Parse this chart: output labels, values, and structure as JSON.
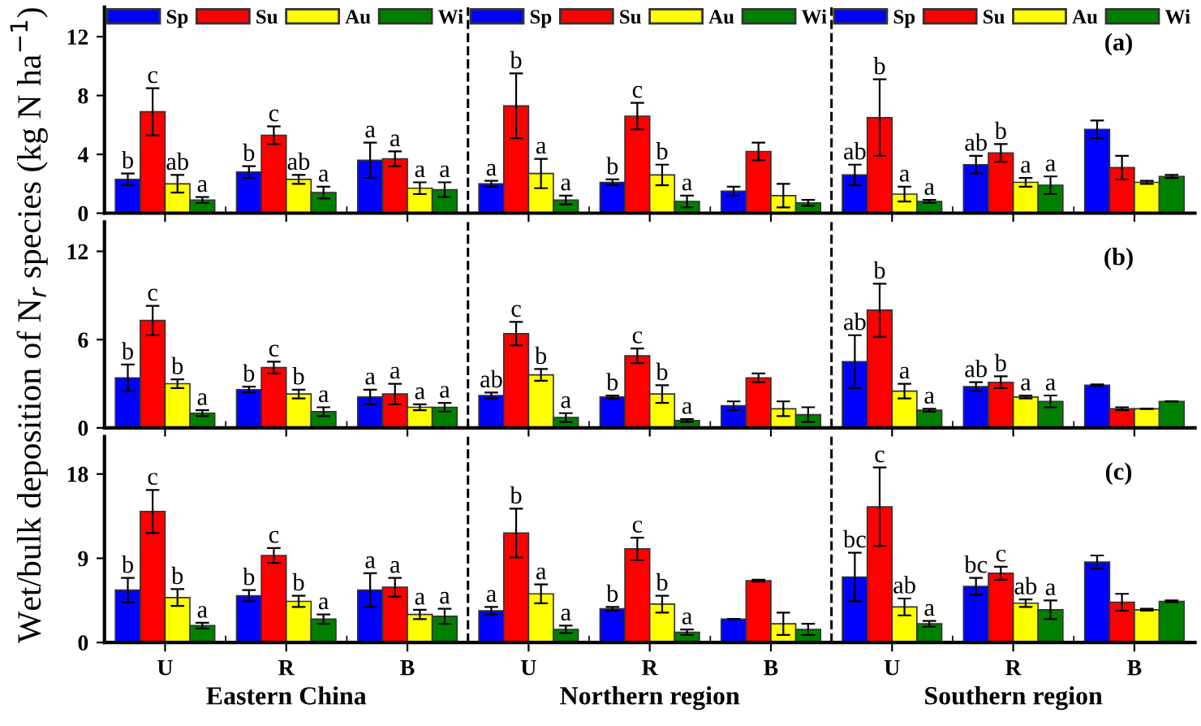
{
  "chart_data": [
    {
      "type": "bar",
      "categories": [
        null,
        null,
        null,
        null,
        null,
        null,
        null,
        null,
        null
      ],
      "ylim": [
        0,
        14
      ],
      "yticks": [
        0,
        4,
        8,
        12
      ],
      "tick_labels": "y",
      "legend": "top",
      "grid": false,
      "annotations": [
        "(a)"
      ],
      "series": [
        {
          "name": "Sp",
          "color": "#0000ff",
          "values": [
            2.3,
            2.8,
            3.6,
            2.0,
            2.1,
            1.5,
            2.6,
            3.3,
            5.7
          ],
          "errors": [
            0.4,
            0.4,
            1.2,
            0.2,
            0.2,
            0.3,
            0.7,
            0.6,
            0.6
          ],
          "value_labels": [
            "b",
            "b",
            "a",
            "a",
            "b",
            null,
            "ab",
            "ab",
            null
          ]
        },
        {
          "name": "Su",
          "color": "#ff0000",
          "values": [
            6.9,
            5.3,
            3.7,
            7.3,
            6.6,
            4.2,
            6.5,
            4.1,
            3.1
          ],
          "errors": [
            1.6,
            0.6,
            0.5,
            2.2,
            0.9,
            0.6,
            2.6,
            0.6,
            0.8
          ],
          "value_labels": [
            "c",
            "c",
            "a",
            "b",
            "c",
            null,
            "b",
            "b",
            null
          ]
        },
        {
          "name": "Au",
          "color": "#ffff00",
          "values": [
            2.0,
            2.3,
            1.7,
            2.7,
            2.6,
            1.2,
            1.3,
            2.1,
            2.1
          ],
          "errors": [
            0.6,
            0.3,
            0.4,
            1.0,
            0.7,
            0.8,
            0.5,
            0.3,
            0.1
          ],
          "value_labels": [
            "ab",
            "ab",
            "a",
            "a",
            "b",
            null,
            "a",
            "a",
            null
          ]
        },
        {
          "name": "Wi",
          "color": "#008000",
          "values": [
            0.9,
            1.4,
            1.6,
            0.9,
            0.8,
            0.7,
            0.8,
            1.9,
            2.5
          ],
          "errors": [
            0.2,
            0.4,
            0.5,
            0.3,
            0.4,
            0.2,
            0.1,
            0.6,
            0.1
          ],
          "value_labels": [
            "a",
            "a",
            "a",
            "a",
            "a",
            null,
            "a",
            "a",
            null
          ]
        }
      ]
    },
    {
      "type": "bar",
      "categories": [
        null,
        null,
        null,
        null,
        null,
        null,
        null,
        null,
        null
      ],
      "ylim": [
        0,
        14
      ],
      "yticks": [
        0,
        6,
        12
      ],
      "tick_labels": "y",
      "grid": false,
      "ylabel": "Wet/bulk deposition of N$_{r}$ species (kg N ha$^{−1}$)",
      "annotations": [
        "(b)"
      ],
      "series": [
        {
          "color": "#0000ff",
          "values": [
            3.4,
            2.6,
            2.1,
            2.2,
            2.1,
            1.5,
            4.5,
            2.8,
            2.9
          ],
          "errors": [
            0.9,
            0.2,
            0.5,
            0.2,
            0.1,
            0.3,
            1.8,
            0.3,
            0.05
          ],
          "value_labels": [
            "b",
            "b",
            "a",
            "ab",
            "b",
            null,
            "ab",
            "ab",
            null
          ]
        },
        {
          "color": "#ff0000",
          "values": [
            7.3,
            4.1,
            2.3,
            6.4,
            4.9,
            3.4,
            8.0,
            3.1,
            1.3
          ],
          "errors": [
            1.0,
            0.4,
            0.7,
            0.8,
            0.5,
            0.3,
            1.8,
            0.4,
            0.1
          ],
          "value_labels": [
            "c",
            "c",
            "a",
            "c",
            "c",
            null,
            "b",
            "b",
            null
          ]
        },
        {
          "color": "#ffff00",
          "values": [
            3.0,
            2.3,
            1.4,
            3.6,
            2.3,
            1.3,
            2.5,
            2.1,
            1.3
          ],
          "errors": [
            0.3,
            0.3,
            0.2,
            0.4,
            0.6,
            0.5,
            0.5,
            0.1,
            null
          ],
          "value_labels": [
            "b",
            "b",
            "a",
            "b",
            "b",
            null,
            "a",
            "a",
            null
          ]
        },
        {
          "color": "#008000",
          "values": [
            1.0,
            1.1,
            1.4,
            0.7,
            0.5,
            0.9,
            1.2,
            1.8,
            1.8
          ],
          "errors": [
            0.2,
            0.3,
            0.3,
            0.3,
            0.1,
            0.5,
            0.1,
            0.4,
            null
          ],
          "value_labels": [
            "a",
            "a",
            "a",
            "a",
            "a",
            null,
            "a",
            "a",
            null
          ]
        }
      ]
    },
    {
      "type": "bar",
      "categories": [
        "U",
        "R",
        "B",
        "U",
        "R",
        "B",
        "U",
        "R",
        "B"
      ],
      "ylim": [
        0,
        22
      ],
      "yticks": [
        0,
        9,
        18
      ],
      "grid": false,
      "annotations": [
        "(c)",
        "Eastern China",
        "Northern region",
        "Southern region"
      ],
      "series": [
        {
          "color": "#0000ff",
          "values": [
            5.6,
            5.0,
            5.6,
            3.4,
            3.6,
            2.5,
            7.0,
            6.0,
            8.6
          ],
          "errors": [
            1.3,
            0.6,
            1.8,
            0.4,
            0.2,
            null,
            2.6,
            0.9,
            0.7
          ],
          "value_labels": [
            "b",
            "b",
            "a",
            "a",
            "b",
            null,
            "bc",
            "bc",
            null
          ]
        },
        {
          "color": "#ff0000",
          "values": [
            14.0,
            9.3,
            5.9,
            11.7,
            10.0,
            6.6,
            14.5,
            7.4,
            4.3
          ],
          "errors": [
            2.3,
            0.8,
            1.0,
            2.6,
            1.2,
            0.1,
            4.2,
            0.7,
            0.9
          ],
          "value_labels": [
            "c",
            "c",
            "a",
            "b",
            "c",
            null,
            "c",
            "c",
            null
          ]
        },
        {
          "color": "#ffff00",
          "values": [
            4.8,
            4.4,
            3.0,
            5.2,
            4.1,
            2.0,
            3.8,
            4.2,
            3.5
          ],
          "errors": [
            0.9,
            0.6,
            0.5,
            1.0,
            0.9,
            1.2,
            0.9,
            0.4,
            0.1
          ],
          "value_labels": [
            "b",
            "b",
            "a",
            "a",
            "b",
            null,
            "ab",
            "ab",
            null
          ]
        },
        {
          "color": "#008000",
          "values": [
            1.8,
            2.5,
            2.8,
            1.4,
            1.1,
            1.4,
            2.0,
            3.5,
            4.4
          ],
          "errors": [
            0.3,
            0.5,
            0.8,
            0.4,
            0.3,
            0.6,
            0.3,
            1.0,
            0.1
          ],
          "value_labels": [
            "a",
            "a",
            "a",
            "a",
            "a",
            null,
            "a",
            "a",
            null
          ]
        }
      ]
    }
  ]
}
